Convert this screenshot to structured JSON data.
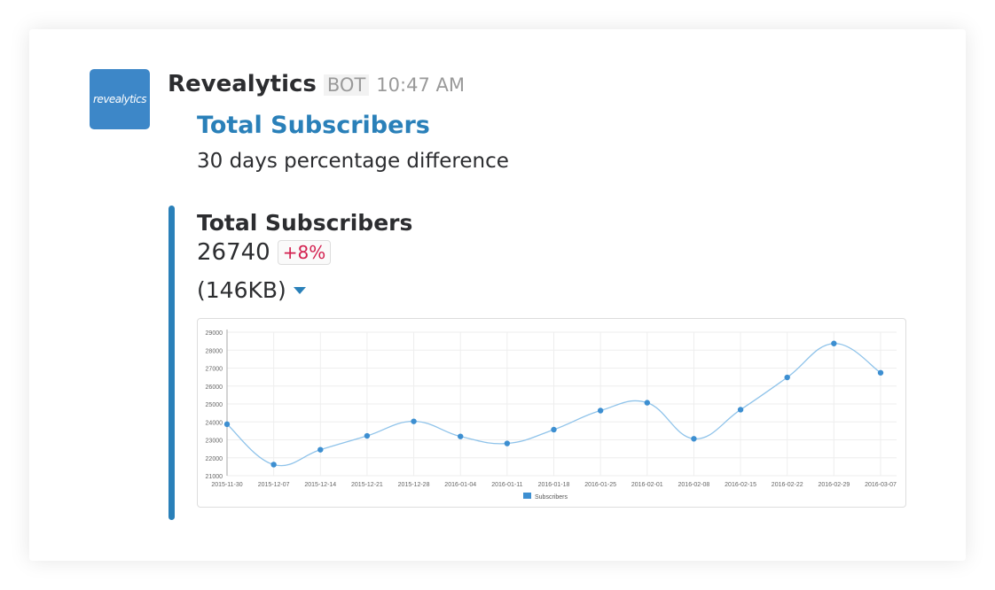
{
  "message": {
    "avatar_text": "revealytics",
    "sender": "Revealytics",
    "bot_label": "BOT",
    "time": "10:47 AM",
    "title": "Total Subscribers",
    "subtitle": "30 days percentage difference"
  },
  "attachment": {
    "title": "Total Subscribers",
    "value": "26740",
    "change": "+8%",
    "file_size": "(146KB)"
  },
  "colors": {
    "accent": "#2a80b9",
    "change": "#d3204f",
    "series": "#3d8fd1"
  },
  "chart_data": {
    "type": "line",
    "smooth": true,
    "grid": true,
    "legend": "bottom",
    "ylim": [
      21000,
      29000
    ],
    "yticks": [
      "21000",
      "22000",
      "23000",
      "24000",
      "25000",
      "26000",
      "27000",
      "28000",
      "29000"
    ],
    "x": [
      "2015-11-30",
      "2015-12-07",
      "2015-12-14",
      "2015-12-21",
      "2015-12-28",
      "2016-01-04",
      "2016-01-11",
      "2016-01-18",
      "2016-01-25",
      "2016-02-01",
      "2016-02-08",
      "2016-02-15",
      "2016-02-22",
      "2016-02-29",
      "2016-03-07"
    ],
    "series": [
      {
        "name": "Subscribers",
        "values": [
          23870,
          21620,
          22450,
          23220,
          24030,
          23190,
          22800,
          23570,
          24630,
          25070,
          23060,
          24680,
          26480,
          28370,
          26740
        ]
      }
    ]
  }
}
